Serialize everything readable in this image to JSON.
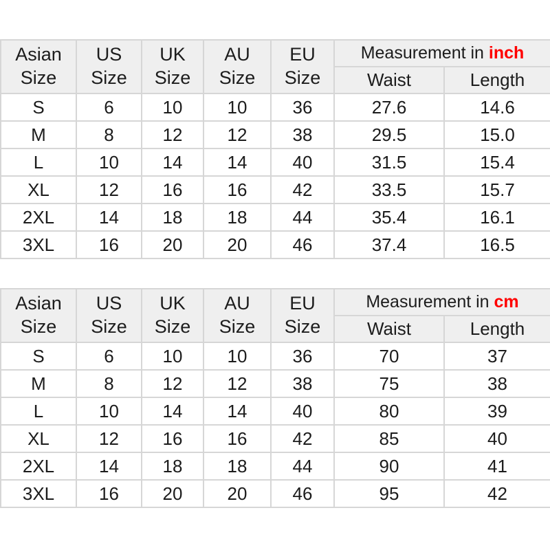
{
  "styles": {
    "header_bg": "#efefef",
    "border_color": "#d6d6d6",
    "text_color": "#1c1c1c",
    "accent_red": "#ff0000"
  },
  "tables": [
    {
      "name": "size-chart-inch",
      "headers": {
        "asian": "Asian\nSize",
        "us": "US\nSize",
        "uk": "UK\nSize",
        "au": "AU\nSize",
        "eu": "EU\nSize",
        "measurement_prefix": "Measurement in",
        "measurement_unit": "inch",
        "waist": "Waist",
        "length": "Length"
      },
      "rows": [
        {
          "asian": "S",
          "us": "6",
          "uk": "10",
          "au": "10",
          "eu": "36",
          "waist": "27.6",
          "length": "14.6"
        },
        {
          "asian": "M",
          "us": "8",
          "uk": "12",
          "au": "12",
          "eu": "38",
          "waist": "29.5",
          "length": "15.0"
        },
        {
          "asian": "L",
          "us": "10",
          "uk": "14",
          "au": "14",
          "eu": "40",
          "waist": "31.5",
          "length": "15.4"
        },
        {
          "asian": "XL",
          "us": "12",
          "uk": "16",
          "au": "16",
          "eu": "42",
          "waist": "33.5",
          "length": "15.7"
        },
        {
          "asian": "2XL",
          "us": "14",
          "uk": "18",
          "au": "18",
          "eu": "44",
          "waist": "35.4",
          "length": "16.1"
        },
        {
          "asian": "3XL",
          "us": "16",
          "uk": "20",
          "au": "20",
          "eu": "46",
          "waist": "37.4",
          "length": "16.5"
        }
      ]
    },
    {
      "name": "size-chart-cm",
      "headers": {
        "asian": "Asian\nSize",
        "us": "US\nSize",
        "uk": "UK\nSize",
        "au": "AU\nSize",
        "eu": "EU\nSize",
        "measurement_prefix": "Measurement in",
        "measurement_unit": "cm",
        "waist": "Waist",
        "length": "Length"
      },
      "rows": [
        {
          "asian": "S",
          "us": "6",
          "uk": "10",
          "au": "10",
          "eu": "36",
          "waist": "70",
          "length": "37"
        },
        {
          "asian": "M",
          "us": "8",
          "uk": "12",
          "au": "12",
          "eu": "38",
          "waist": "75",
          "length": "38"
        },
        {
          "asian": "L",
          "us": "10",
          "uk": "14",
          "au": "14",
          "eu": "40",
          "waist": "80",
          "length": "39"
        },
        {
          "asian": "XL",
          "us": "12",
          "uk": "16",
          "au": "16",
          "eu": "42",
          "waist": "85",
          "length": "40"
        },
        {
          "asian": "2XL",
          "us": "14",
          "uk": "18",
          "au": "18",
          "eu": "44",
          "waist": "90",
          "length": "41"
        },
        {
          "asian": "3XL",
          "us": "16",
          "uk": "20",
          "au": "20",
          "eu": "46",
          "waist": "95",
          "length": "42"
        }
      ]
    }
  ]
}
